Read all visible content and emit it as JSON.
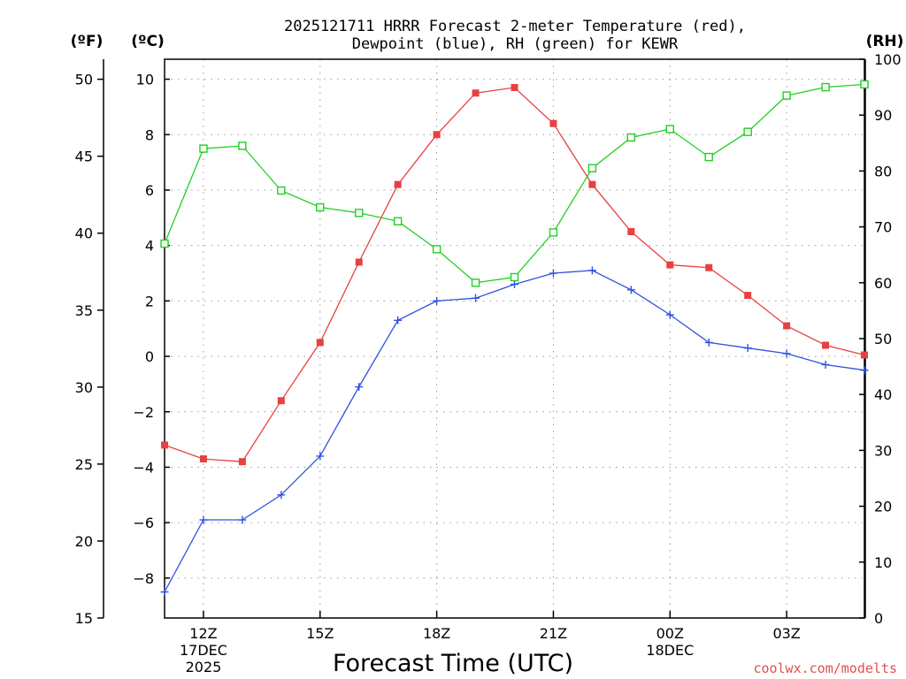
{
  "chart_data": {
    "type": "line",
    "title_line1": "2025121711 HRRR Forecast 2-meter Temperature (red),",
    "title_line2": "Dewpoint (blue), RH (green) for KEWR",
    "xlabel": "Forecast Time (UTC)",
    "credit": "coolwx.com/modelts",
    "left_outer_axis": {
      "unit_label": "(ºF)",
      "range": [
        15,
        51.3
      ],
      "ticks": [
        15,
        20,
        25,
        30,
        35,
        40,
        45,
        50
      ]
    },
    "left_inner_axis": {
      "unit_label": "(ºC)",
      "range": [
        -9.44,
        10.72
      ],
      "ticks": [
        -8,
        -6,
        -4,
        -2,
        0,
        2,
        4,
        6,
        8,
        10
      ]
    },
    "right_axis": {
      "unit_label": "(RH)",
      "range": [
        0,
        100
      ],
      "ticks": [
        0,
        10,
        20,
        30,
        40,
        50,
        60,
        70,
        80,
        90,
        100
      ]
    },
    "x_hours": [
      11,
      12,
      13,
      14,
      15,
      16,
      17,
      18,
      19,
      20,
      21,
      22,
      23,
      24,
      25,
      26,
      27,
      28,
      29
    ],
    "x_range": [
      11,
      29
    ],
    "x_ticks": [
      {
        "hour": 12,
        "label": "12Z",
        "sub1": "17DEC",
        "sub2": "2025"
      },
      {
        "hour": 15,
        "label": "15Z",
        "sub1": "",
        "sub2": ""
      },
      {
        "hour": 18,
        "label": "18Z",
        "sub1": "",
        "sub2": ""
      },
      {
        "hour": 21,
        "label": "21Z",
        "sub1": "",
        "sub2": ""
      },
      {
        "hour": 24,
        "label": "00Z",
        "sub1": "18DEC",
        "sub2": ""
      },
      {
        "hour": 27,
        "label": "03Z",
        "sub1": "",
        "sub2": ""
      }
    ],
    "series": [
      {
        "name": "2-meter Temperature",
        "axis": "celsius",
        "color": "#e84040",
        "marker": "filled-square",
        "values": [
          -3.2,
          -3.7,
          -3.8,
          -1.6,
          0.5,
          3.4,
          6.2,
          8.0,
          9.5,
          9.7,
          8.4,
          6.2,
          4.5,
          3.3,
          3.2,
          2.2,
          1.1,
          0.4,
          0.05
        ]
      },
      {
        "name": "Dewpoint",
        "axis": "celsius",
        "color": "#3050e0",
        "marker": "plus",
        "values": [
          -8.5,
          -5.9,
          -5.9,
          -5.0,
          -3.6,
          -1.1,
          1.3,
          2.0,
          2.1,
          2.6,
          3.0,
          3.1,
          2.4,
          1.5,
          0.5,
          0.3,
          0.1,
          -0.3,
          -0.5
        ]
      },
      {
        "name": "RH",
        "axis": "rh",
        "color": "#20d020",
        "marker": "open-square",
        "values": [
          67,
          84,
          84.5,
          76.5,
          73.5,
          72.5,
          71,
          66,
          60,
          61,
          69,
          80.5,
          86,
          87.5,
          82.5,
          87,
          93.5,
          95,
          95.5
        ]
      }
    ]
  }
}
